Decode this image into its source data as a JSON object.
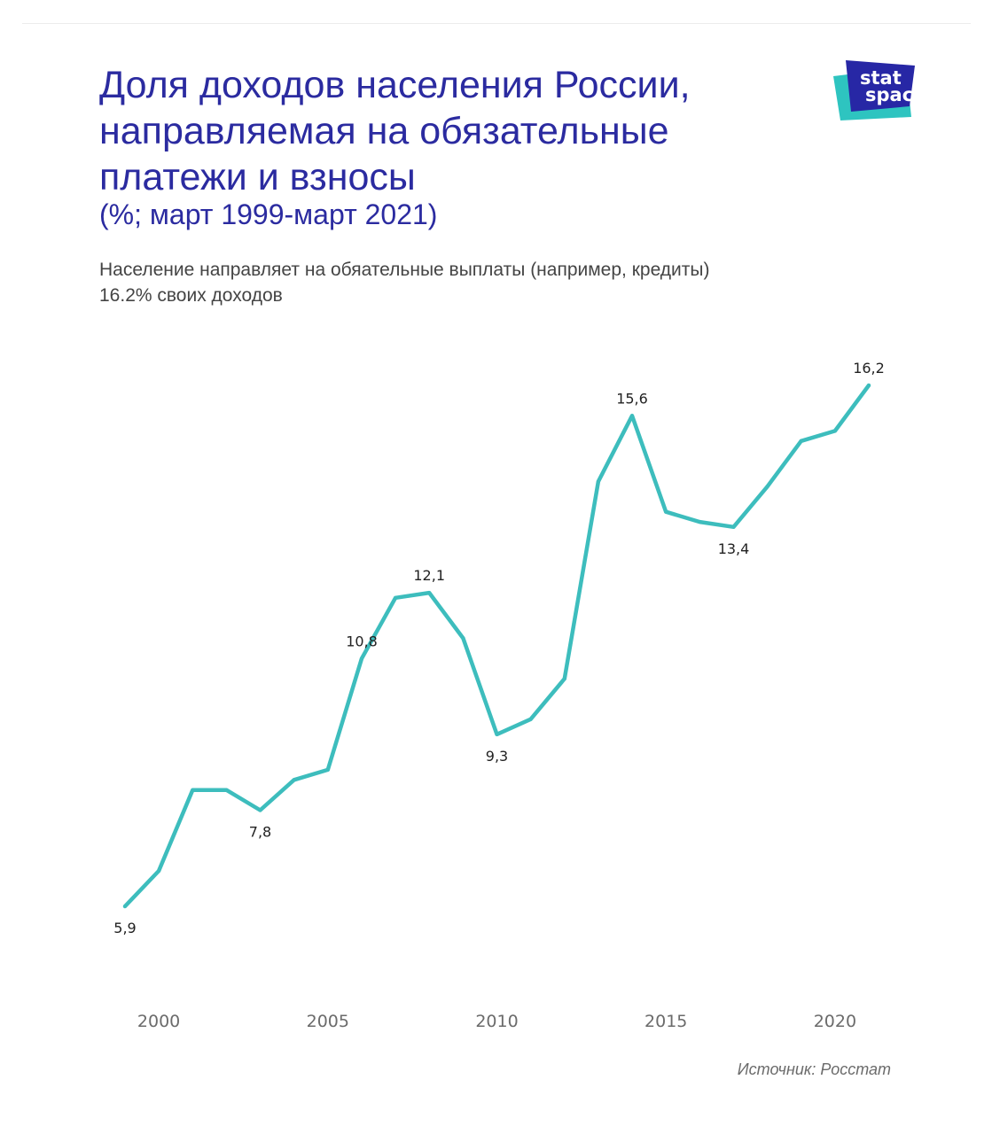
{
  "header": {
    "title_lines": [
      "Доля доходов населения России,",
      "направляемая на обязательные",
      "платежи и взносы"
    ],
    "subtitle": "(%; март 1999-март 2021)",
    "description_lines": [
      "Население направляет на обяательные выплаты (например, кредиты)",
      "16.2% своих доходов"
    ]
  },
  "logo": {
    "line1": "stat",
    "line2": "space",
    "colors": {
      "back": "#2ec4c0",
      "front": "#2727a5",
      "text": "#ffffff"
    }
  },
  "colors": {
    "title": "#2b2ba0",
    "line": "#3dbdbd"
  },
  "chart_data": {
    "type": "line",
    "title": "",
    "xlabel": "",
    "ylabel": "",
    "x": [
      1999,
      2000,
      2001,
      2002,
      2003,
      2004,
      2005,
      2006,
      2007,
      2008,
      2009,
      2010,
      2011,
      2012,
      2013,
      2014,
      2015,
      2016,
      2017,
      2018,
      2019,
      2020,
      2021
    ],
    "series": [
      {
        "values": [
          5.9,
          6.6,
          8.2,
          8.2,
          7.8,
          8.4,
          8.6,
          10.8,
          12.0,
          12.1,
          11.2,
          9.3,
          9.6,
          10.4,
          14.3,
          15.6,
          13.7,
          13.5,
          13.4,
          14.2,
          15.1,
          15.3,
          16.2
        ]
      }
    ],
    "data_labels": [
      {
        "x": 1999,
        "text": "5,9",
        "position": "below"
      },
      {
        "x": 2003,
        "text": "7,8",
        "position": "below"
      },
      {
        "x": 2006,
        "text": "10,8",
        "position": "above"
      },
      {
        "x": 2008,
        "text": "12,1",
        "position": "above"
      },
      {
        "x": 2010,
        "text": "9,3",
        "position": "below"
      },
      {
        "x": 2014,
        "text": "15,6",
        "position": "above"
      },
      {
        "x": 2017,
        "text": "13,4",
        "position": "below"
      },
      {
        "x": 2021,
        "text": "16,2",
        "position": "above"
      }
    ],
    "x_ticks": [
      2000,
      2005,
      2010,
      2015,
      2020
    ],
    "x_tick_labels": [
      "2000",
      "2005",
      "2010",
      "2015",
      "2020"
    ],
    "xlim": [
      1999,
      2021
    ],
    "ylim": [
      5.9,
      16.2
    ],
    "grid": false,
    "legend": "none"
  },
  "footer": {
    "source": "Источник: Росстат"
  }
}
